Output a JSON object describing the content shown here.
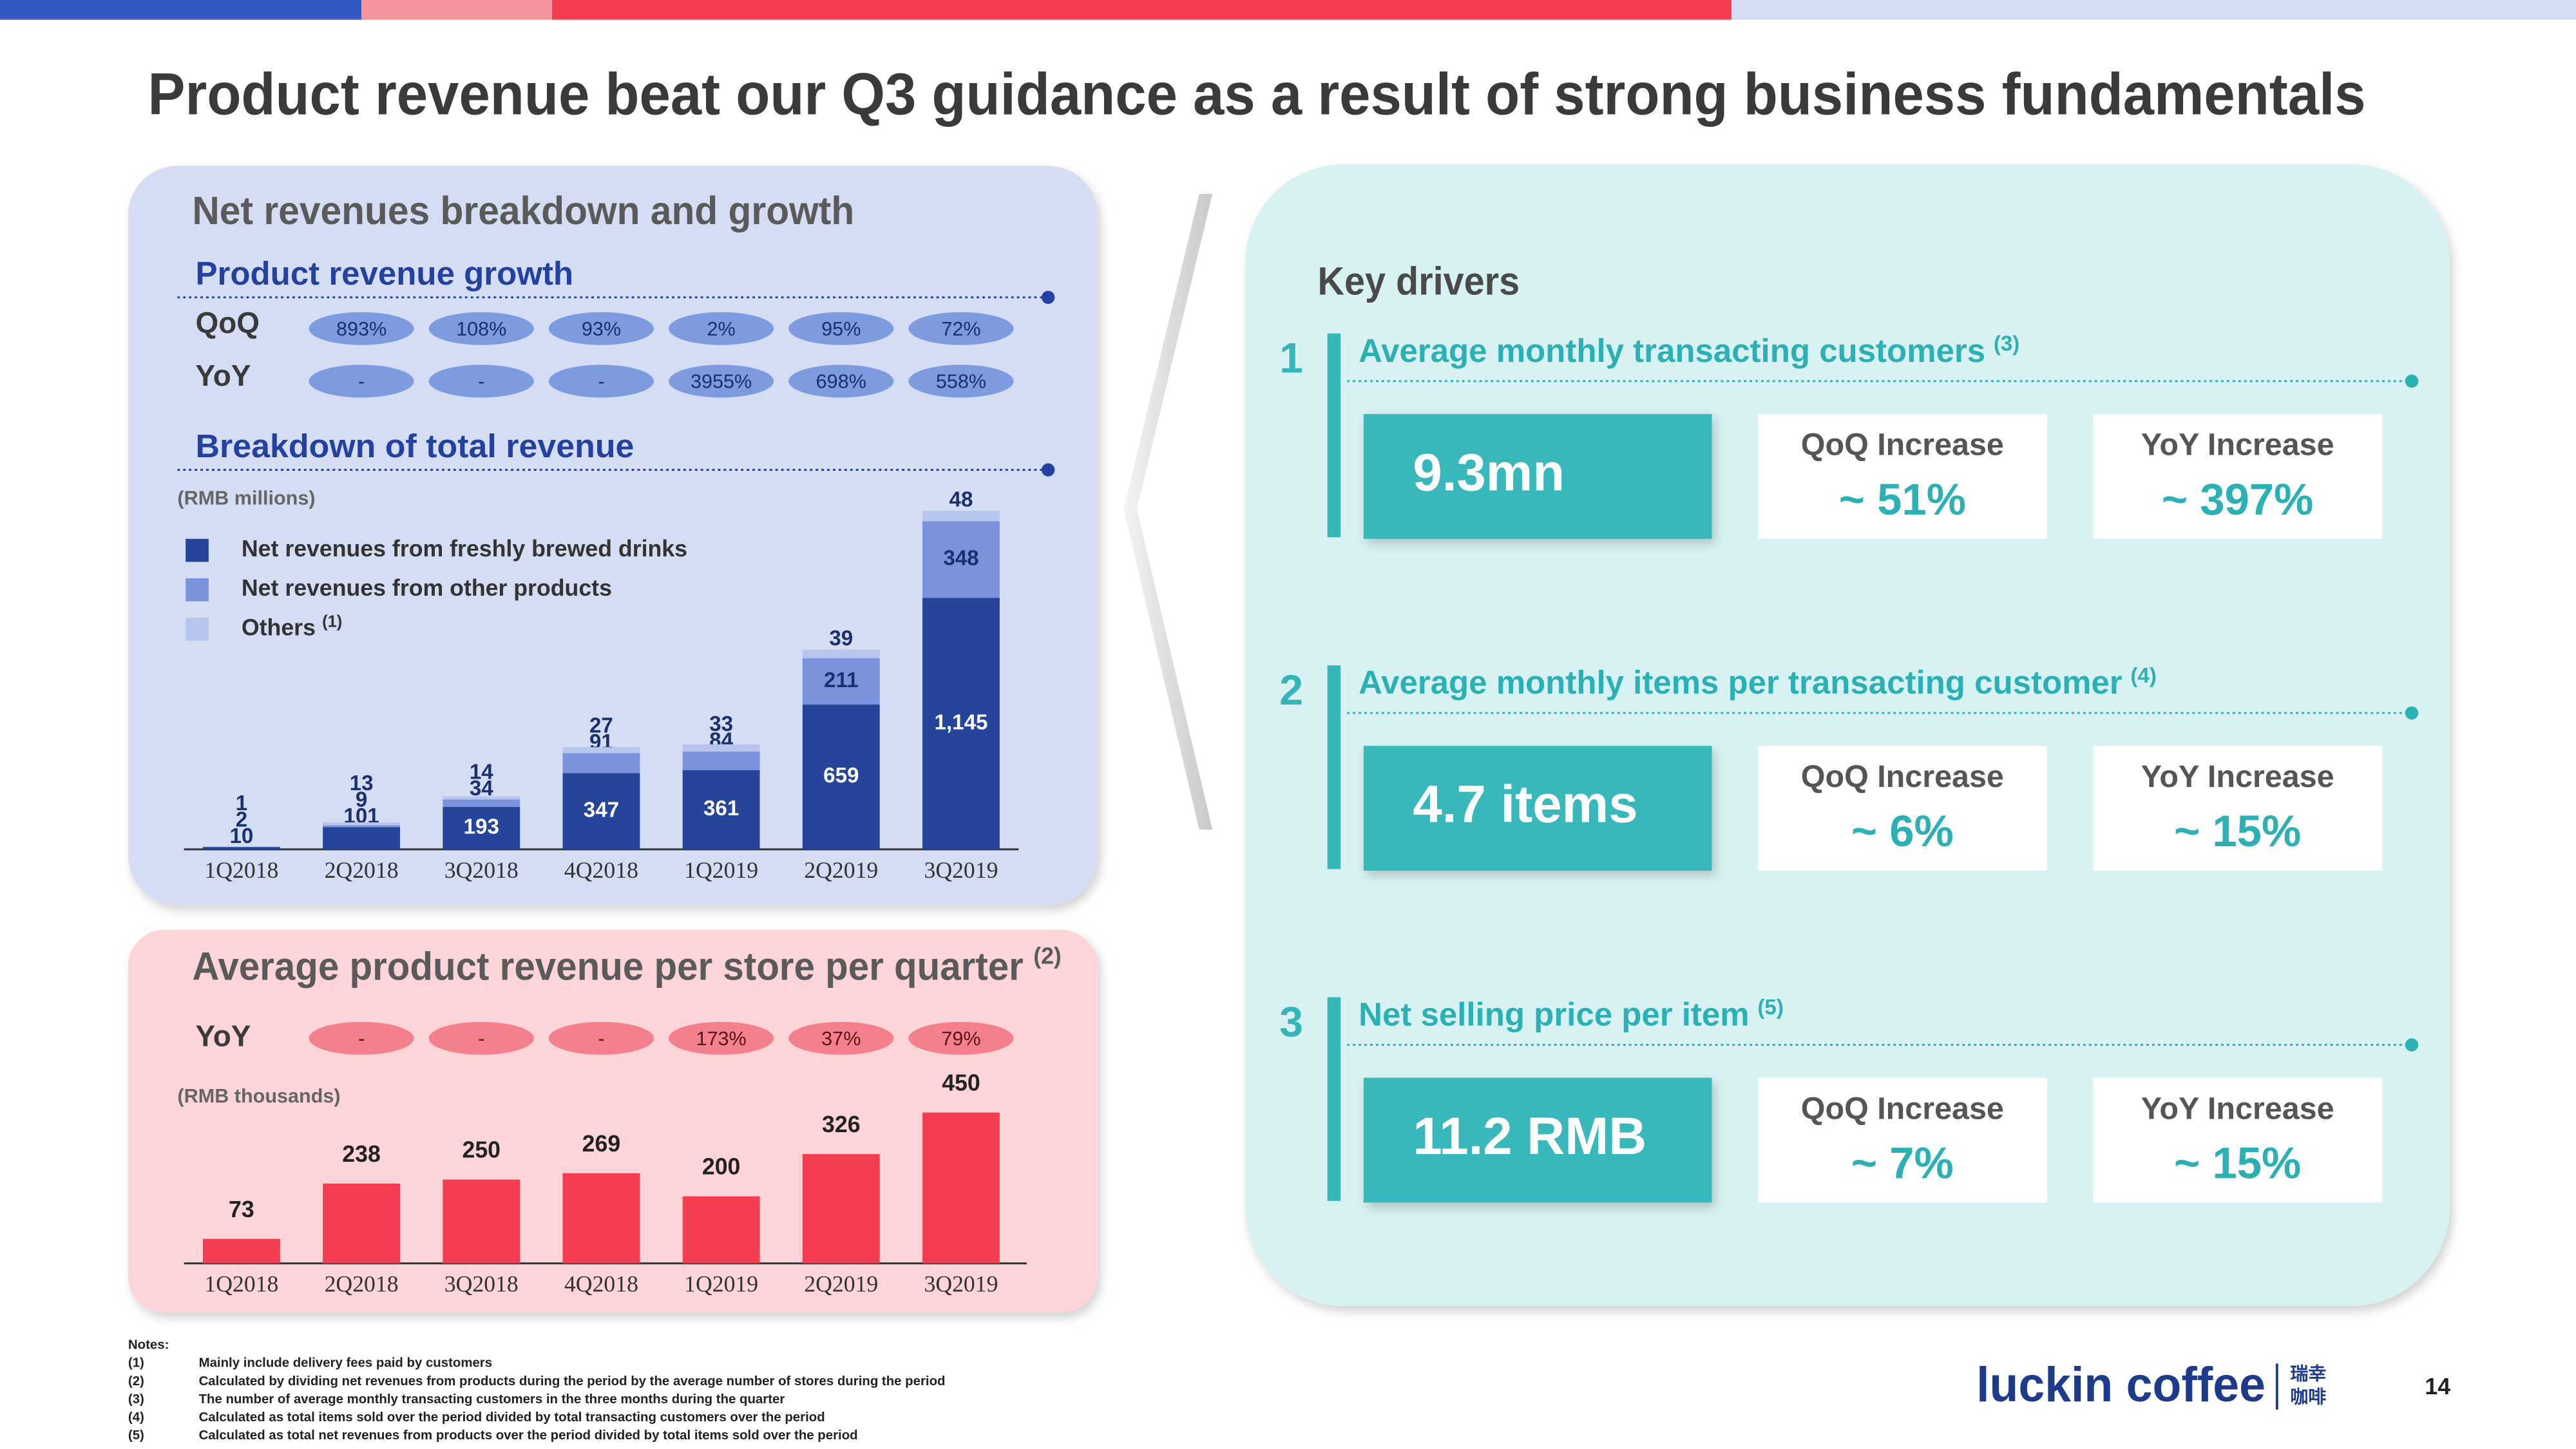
{
  "title": "Product revenue beat our Q3 guidance as a result of strong business fundamentals",
  "growth": {
    "title": "Product revenue growth",
    "rows": [
      {
        "label": "QoQ",
        "values": [
          "893%",
          "108%",
          "93%",
          "2%",
          "95%",
          "72%"
        ]
      },
      {
        "label": "YoY",
        "values": [
          "-",
          "-",
          "-",
          "3955%",
          "698%",
          "558%"
        ]
      }
    ]
  },
  "chart_data": [
    {
      "type": "bar",
      "stacked": true,
      "title": "Net revenues breakdown and growth",
      "subtitle": "Breakdown of total revenue",
      "unit_label": "(RMB millions)",
      "categories": [
        "1Q2018",
        "2Q2018",
        "3Q2018",
        "4Q2018",
        "1Q2019",
        "2Q2019",
        "3Q2019"
      ],
      "series": [
        {
          "name": "Net revenues from freshly brewed drinks",
          "color": "#25449a",
          "label_color": "#ffffff",
          "values": [
            10,
            101,
            193,
            347,
            361,
            659,
            1145
          ],
          "value_labels": [
            "10",
            "101",
            "193",
            "347",
            "361",
            "659",
            "1,145"
          ]
        },
        {
          "name": "Net revenues from other products",
          "color": "#7b93dc",
          "label_color": "#1c2f6e",
          "values": [
            2,
            9,
            34,
            91,
            84,
            211,
            348
          ]
        },
        {
          "name": "Others",
          "note": "(1)",
          "color": "#b7c5ef",
          "label_color": "#1c2f6e",
          "values": [
            1,
            13,
            14,
            27,
            33,
            39,
            48
          ]
        }
      ],
      "ylim": [
        0,
        1600
      ]
    },
    {
      "type": "bar",
      "title": "Average product revenue per store per quarter",
      "title_note": "(2)",
      "unit_label": "(RMB thousands)",
      "yoy": {
        "label": "YoY",
        "values": [
          "-",
          "-",
          "-",
          "173%",
          "37%",
          "79%"
        ]
      },
      "categories": [
        "1Q2018",
        "2Q2018",
        "3Q2018",
        "4Q2018",
        "1Q2019",
        "2Q2019",
        "3Q2019"
      ],
      "values": [
        73,
        238,
        250,
        269,
        200,
        326,
        450
      ],
      "color": "#f53d4f",
      "ylim": [
        0,
        500
      ]
    }
  ],
  "key_drivers": {
    "title": "Key drivers",
    "items": [
      {
        "number": "1",
        "label": "Average monthly transacting customers",
        "note": "(3)",
        "value": "9.3mn",
        "qoq_label": "QoQ Increase",
        "qoq_value": "~ 51%",
        "yoy_label": "YoY Increase",
        "yoy_value": "~ 397%"
      },
      {
        "number": "2",
        "label": "Average monthly items per transacting customer",
        "note": "(4)",
        "value": "4.7 items",
        "qoq_label": "QoQ Increase",
        "qoq_value": "~ 6%",
        "yoy_label": "YoY Increase",
        "yoy_value": "~ 15%"
      },
      {
        "number": "3",
        "label": "Net selling price per item",
        "note": "(5)",
        "value": "11.2 RMB",
        "qoq_label": "QoQ Increase",
        "qoq_value": "~ 7%",
        "yoy_label": "YoY Increase",
        "yoy_value": "~ 15%"
      }
    ]
  },
  "notes": {
    "title": "Notes:",
    "items": [
      {
        "marker": "(1)",
        "text": "Mainly include delivery fees paid by customers"
      },
      {
        "marker": "(2)",
        "text": "Calculated by dividing net revenues from products during the period by the average number of stores during the period"
      },
      {
        "marker": "(3)",
        "text": "The number of average monthly transacting customers in the three months during the quarter"
      },
      {
        "marker": "(4)",
        "text": "Calculated as total items sold over the period divided by total transacting customers over the period"
      },
      {
        "marker": "(5)",
        "text": "Calculated as total net revenues from products over the period divided by total items sold over the period"
      }
    ]
  },
  "footer": {
    "brand": "luckin coffee",
    "brand_cn_top": "瑞幸",
    "brand_cn_bottom": "咖啡",
    "page_number": "14"
  }
}
